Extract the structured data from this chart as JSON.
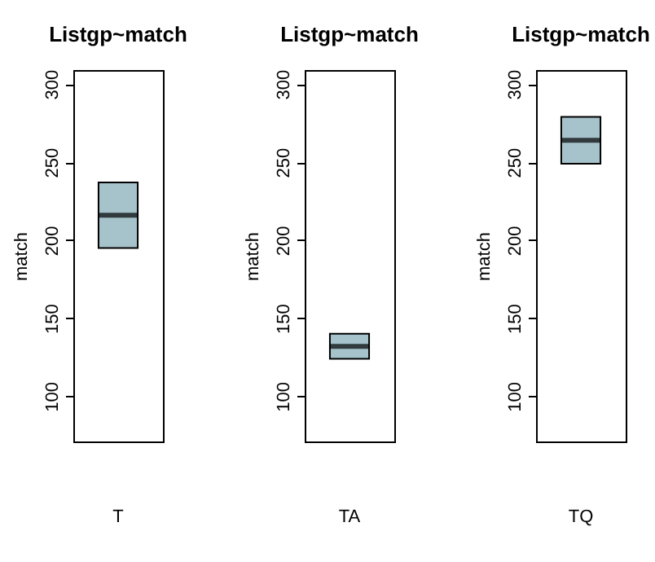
{
  "chart_data": [
    {
      "type": "box",
      "title": "Listgp~match",
      "ylabel": "match",
      "categories": [
        "T"
      ],
      "boxes": [
        {
          "low": 195,
          "q1": 195,
          "median": 216,
          "q3": 237,
          "high": 237
        }
      ],
      "color": "#a6c3cc",
      "ylim": [
        71,
        309
      ],
      "yticks": [
        100,
        150,
        200,
        250,
        300
      ],
      "grid": false
    },
    {
      "type": "box",
      "title": "Listgp~match",
      "ylabel": "match",
      "categories": [
        "TA"
      ],
      "boxes": [
        {
          "low": 124,
          "q1": 124,
          "median": 132,
          "q3": 140,
          "high": 140
        }
      ],
      "color": "#a6c3cc",
      "ylim": [
        71,
        309
      ],
      "yticks": [
        100,
        150,
        200,
        250,
        300
      ],
      "grid": false
    },
    {
      "type": "box",
      "title": "Listgp~match",
      "ylabel": "match",
      "categories": [
        "TQ"
      ],
      "boxes": [
        {
          "low": 249,
          "q1": 249,
          "median": 264,
          "q3": 279,
          "high": 279
        }
      ],
      "color": "#a6c3cc",
      "ylim": [
        71,
        309
      ],
      "yticks": [
        100,
        150,
        200,
        250,
        300
      ],
      "grid": false
    }
  ]
}
